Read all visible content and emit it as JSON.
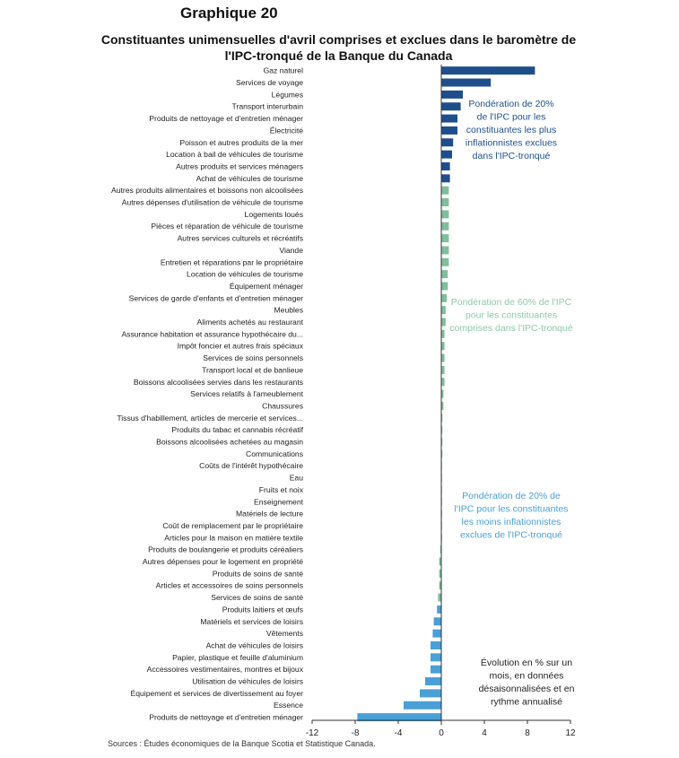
{
  "header": {
    "title": "Graphique 20",
    "subtitle": "Constituantes unimensuelles d'avril comprises et exclues dans le baromètre de l'IPC-tronqué de la Banque du Canada"
  },
  "footer": {
    "source": "Sources : Études économiques de la Banque Scotia et Statistique Canada."
  },
  "colors": {
    "top": "#1f4e8c",
    "middle": "#7fbf9a",
    "bottom": "#4a9fd6",
    "axis": "#333333"
  },
  "annotations": [
    {
      "text": [
        "Pondération de 20%",
        "de l'IPC pour les",
        "constituantes les plus",
        "inflationnistes exclues",
        "dans l'IPC-tronqué"
      ],
      "color": "#1f4e8c"
    },
    {
      "text": [
        "Pondération de 60% de l'IPC",
        "pour les constituantes",
        "comprises dans l'IPC-tronqué"
      ],
      "color": "#8fc9a8"
    },
    {
      "text": [
        "Pondération de 20% de",
        "l'IPC pour les constituantes",
        "les moins inflationnistes",
        "exclues de l'IPC-tronqué"
      ],
      "color": "#4a9fd6"
    },
    {
      "text": [
        "Évolution en % sur un",
        "mois, en données",
        "désaisonnalisées et en",
        "rythme annualisé"
      ],
      "color": "#222222"
    }
  ],
  "chart_data": {
    "type": "bar",
    "orientation": "horizontal",
    "title": "Constituantes unimensuelles d'avril comprises et exclues dans le baromètre de l'IPC-tronqué de la Banque du Canada",
    "xlim": [
      -12,
      12
    ],
    "xticks": [
      -12,
      -8,
      -4,
      0,
      4,
      8,
      12
    ],
    "xtick_labels": [
      "-12",
      "-8",
      "-4",
      "0",
      "4",
      "8",
      "12"
    ],
    "grid": false,
    "categories": [
      "Gaz naturel",
      "Services de voyage",
      "Légumes",
      "Transport interurbain",
      "Produits de nettoyage et d'entretien ménager",
      "Électricité",
      "Poisson et autres produits de la mer",
      "Location à bail de véhicules de tourisme",
      "Autres produits et services ménagers",
      "Achat de véhicules de tourisme",
      "Autres produits alimentaires et boissons non alcoolisées",
      "Autres dépenses d'utilisation de véhicule de tourisme",
      "Logements loués",
      "Pièces et réparation de véhicule de tourisme",
      "Autres services culturels et récréatifs",
      "Viande",
      "Entretien et réparations par le propriétaire",
      "Location de véhicules de tourisme",
      "Équipement ménager",
      "Services de garde d'enfants et d'entretien ménager",
      "Meubles",
      "Aliments achetés au restaurant",
      "Assurance habitation et assurance hypothécaire du...",
      "Impôt foncier et autres frais spéciaux",
      "Services de soins personnels",
      "Transport local et de banlieue",
      "Boissons alcoolisées servies dans les restaurants",
      "Services relatifs à l'ameublement",
      "Chaussures",
      "Tissus d'habillement, articles de mercerie et services...",
      "Produits du tabac et cannabis récréatif",
      "Boissons alcoolisées achetées au magasin",
      "Communications",
      "Coûts de l'intérêt hypothécaire",
      "Eau",
      "Fruits et noix",
      "Enseignement",
      "Matériels de lecture",
      "Coût de remplacement par le propriétaire",
      "Articles pour la maison en matière textile",
      "Produits de boulangerie et produits céréaliers",
      "Autres dépenses pour le logement en propriété",
      "Produits de soins de santé",
      "Articles et accessoires de soins personnels",
      "Services de soins de santé",
      "Produits laitiers et œufs",
      "Matériels et services de loisirs",
      "Vêtements",
      "Achat de véhicules de loisirs",
      "Papier, plastique et feuille d'aluminium",
      "Accessoires vestimentaires, montres et bijoux",
      "Utilisation de véhicules de loisirs",
      "Équipement et services de divertissement au foyer",
      "Essence",
      "Produits de nettoyage et d'entretien ménager"
    ],
    "values": [
      8.7,
      4.6,
      2.0,
      1.8,
      1.5,
      1.5,
      1.1,
      1.0,
      0.8,
      0.8,
      0.7,
      0.7,
      0.7,
      0.7,
      0.7,
      0.7,
      0.7,
      0.6,
      0.6,
      0.5,
      0.4,
      0.4,
      0.3,
      0.3,
      0.3,
      0.3,
      0.3,
      0.2,
      0.2,
      0.1,
      0.1,
      0.1,
      0.1,
      0.05,
      0.0,
      0.0,
      0.0,
      0.0,
      0.0,
      0.0,
      -0.1,
      -0.2,
      -0.2,
      -0.2,
      -0.3,
      -0.4,
      -0.7,
      -0.8,
      -1.0,
      -1.0,
      -1.0,
      -1.5,
      -2.0,
      -3.5,
      -7.8
    ],
    "groups": [
      "top",
      "top",
      "top",
      "top",
      "top",
      "top",
      "top",
      "top",
      "top",
      "top",
      "middle",
      "middle",
      "middle",
      "middle",
      "middle",
      "middle",
      "middle",
      "middle",
      "middle",
      "middle",
      "middle",
      "middle",
      "middle",
      "middle",
      "middle",
      "middle",
      "middle",
      "middle",
      "middle",
      "middle",
      "middle",
      "middle",
      "middle",
      "middle",
      "middle",
      "middle",
      "middle",
      "middle",
      "middle",
      "middle",
      "middle",
      "middle",
      "middle",
      "middle",
      "middle",
      "bottom",
      "bottom",
      "bottom",
      "bottom",
      "bottom",
      "bottom",
      "bottom",
      "bottom",
      "bottom",
      "bottom"
    ]
  }
}
